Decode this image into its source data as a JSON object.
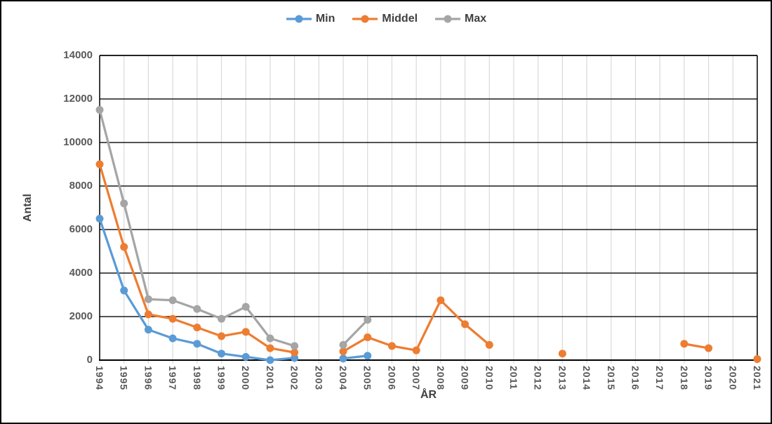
{
  "chart_data": {
    "type": "line",
    "title": "",
    "xlabel": "ÅR",
    "ylabel": "Antal",
    "legend_position": "top-center",
    "ylim": [
      0,
      14000
    ],
    "yticks": [
      0,
      2000,
      4000,
      6000,
      8000,
      10000,
      12000,
      14000
    ],
    "grid": {
      "horizontal": true,
      "vertical": true
    },
    "categories": [
      "1994",
      "1995",
      "1996",
      "1997",
      "1998",
      "1999",
      "2000",
      "2001",
      "2002",
      "2003",
      "2004",
      "2005",
      "2006",
      "2007",
      "2008",
      "2009",
      "2010",
      "2011",
      "2012",
      "2013",
      "2014",
      "2015",
      "2016",
      "2017",
      "2018",
      "2019",
      "2020",
      "2021"
    ],
    "series": [
      {
        "name": "Min",
        "color": "#5B9BD5",
        "values": [
          6500,
          3200,
          1400,
          1000,
          750,
          300,
          150,
          0,
          100,
          null,
          75,
          200,
          null,
          null,
          null,
          null,
          null,
          null,
          null,
          null,
          null,
          null,
          null,
          null,
          null,
          null,
          null,
          null
        ]
      },
      {
        "name": "Middel",
        "color": "#ED7D31",
        "values": [
          9000,
          5200,
          2100,
          1900,
          1500,
          1100,
          1300,
          550,
          350,
          null,
          400,
          1050,
          650,
          450,
          2750,
          1650,
          700,
          null,
          null,
          300,
          null,
          null,
          null,
          null,
          750,
          550,
          null,
          50
        ]
      },
      {
        "name": "Max",
        "color": "#A5A5A5",
        "values": [
          11500,
          7200,
          2800,
          2750,
          2350,
          1900,
          2450,
          1000,
          650,
          null,
          700,
          1850,
          null,
          null,
          null,
          null,
          null,
          null,
          null,
          null,
          null,
          null,
          null,
          null,
          null,
          null,
          null,
          null
        ]
      }
    ]
  },
  "style_colors": {
    "axis_line": "#000000",
    "major_gridline": "#1a1a1a",
    "minor_vertical_gridline": "#D9D9D9",
    "tick_label": "#595959",
    "axis_title": "#404040",
    "legend_text": "#404040",
    "background": "#ffffff"
  }
}
